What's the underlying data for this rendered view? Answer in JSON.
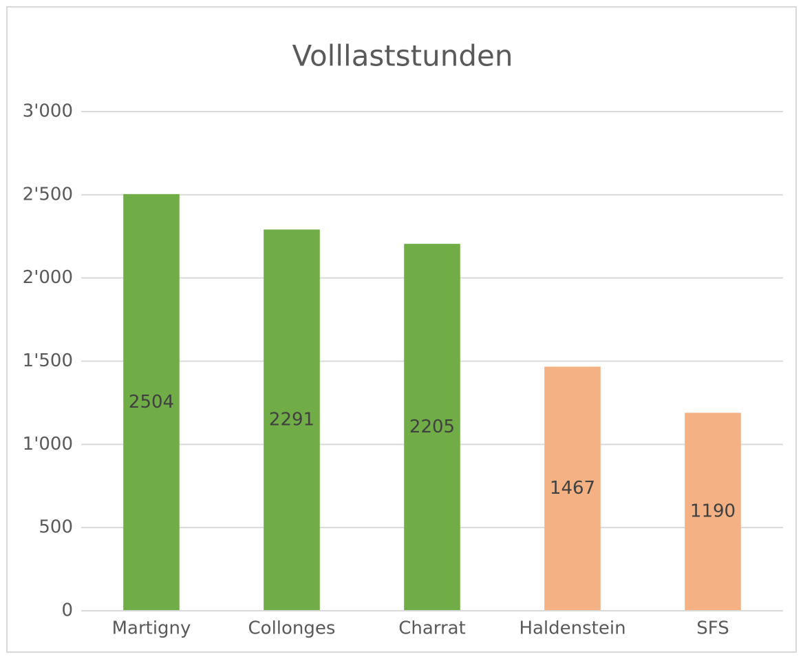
{
  "chart_data": {
    "type": "bar",
    "title": "Volllaststunden",
    "categories": [
      "Martigny",
      "Collonges",
      "Charrat",
      "Haldenstein",
      "SFS"
    ],
    "values": [
      2504,
      2291,
      2205,
      1467,
      1190
    ],
    "colors": [
      "#70ad47",
      "#70ad47",
      "#70ad47",
      "#f4b183",
      "#f4b183"
    ],
    "ylim": [
      0,
      3000
    ],
    "yticks": [
      0,
      500,
      {
        "value": 1000,
        "label": "1'000"
      },
      {
        "value": 1500,
        "label": "1'500"
      },
      {
        "value": 2000,
        "label": "2'000"
      },
      {
        "value": 2500,
        "label": "2'500"
      },
      {
        "value": 3000,
        "label": "3'000"
      }
    ],
    "grid": true
  }
}
